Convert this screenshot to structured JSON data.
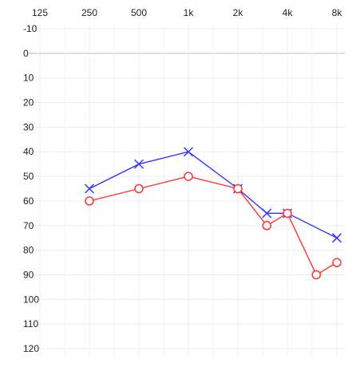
{
  "chart_data": {
    "type": "line",
    "title": "",
    "xlabel": "",
    "ylabel": "",
    "x_scale": "log2",
    "x_ticks": [
      125,
      250,
      500,
      1000,
      2000,
      4000,
      8000
    ],
    "x_tick_labels": [
      "125",
      "250",
      "500",
      "1k",
      "2k",
      "4k",
      "8k"
    ],
    "x_range": [
      125,
      8000
    ],
    "y_ticks": [
      -10,
      0,
      10,
      20,
      30,
      40,
      50,
      60,
      70,
      80,
      90,
      100,
      110,
      120
    ],
    "y_tick_labels": [
      "-10",
      "0",
      "10",
      "20",
      "30",
      "40",
      "50",
      "60",
      "70",
      "80",
      "90",
      "100",
      "110",
      "120"
    ],
    "y_range": [
      -10,
      120
    ],
    "y_inverted": true,
    "grid": true,
    "reference_line_y": 0,
    "series": [
      {
        "marker": "x",
        "color": "#3333ff",
        "points": [
          {
            "x": 250,
            "y": 55
          },
          {
            "x": 500,
            "y": 45
          },
          {
            "x": 1000,
            "y": 40
          },
          {
            "x": 2000,
            "y": 55
          },
          {
            "x": 3000,
            "y": 65
          },
          {
            "x": 4000,
            "y": 65
          },
          {
            "x": 8000,
            "y": 75
          }
        ]
      },
      {
        "marker": "o",
        "color": "#ff3333",
        "points": [
          {
            "x": 250,
            "y": 60
          },
          {
            "x": 500,
            "y": 55
          },
          {
            "x": 1000,
            "y": 50
          },
          {
            "x": 2000,
            "y": 55
          },
          {
            "x": 3000,
            "y": 70
          },
          {
            "x": 4000,
            "y": 65
          },
          {
            "x": 6000,
            "y": 90
          },
          {
            "x": 8000,
            "y": 85
          }
        ]
      }
    ]
  }
}
